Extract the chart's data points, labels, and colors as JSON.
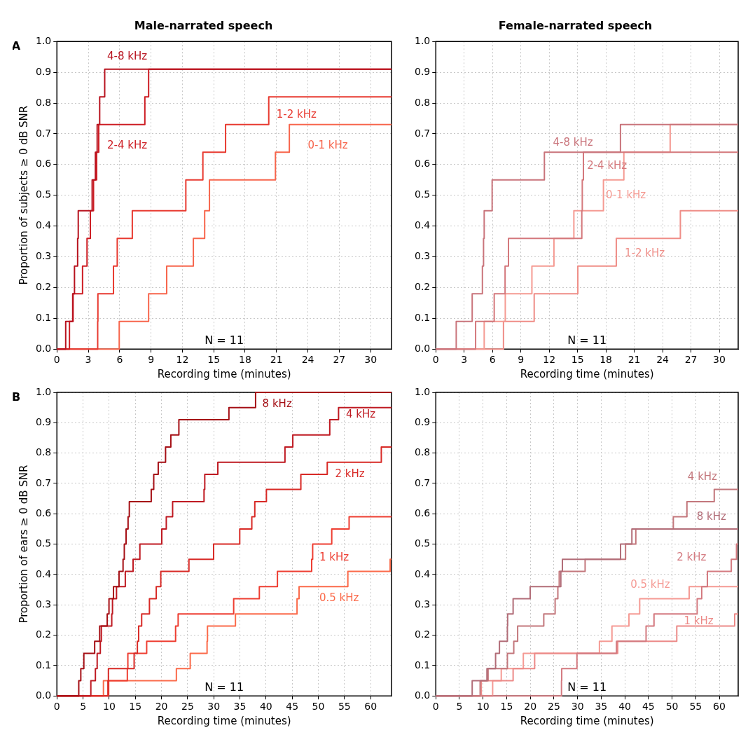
{
  "chart_data": [
    {
      "type": "step",
      "title": "Male-narrated speech",
      "xlabel": "Recording time (minutes)",
      "ylabel": "Proportion of subjects ≥ 0 dB SNR",
      "annotations": [
        "A",
        "N = 11"
      ],
      "grid": true,
      "xlim": [
        0,
        32
      ],
      "xticks": [
        0,
        3,
        6,
        9,
        12,
        15,
        18,
        21,
        24,
        27,
        30
      ],
      "ylim": [
        0,
        1
      ],
      "yticks": [
        {
          "value": 0,
          "label": "0.0"
        },
        {
          "value": 0.1,
          "label": "0.1"
        },
        {
          "value": 0.2,
          "label": "0.2"
        },
        {
          "value": 0.3,
          "label": "0.3"
        },
        {
          "value": 0.4,
          "label": "0.4"
        },
        {
          "value": 0.5,
          "label": "0.5"
        },
        {
          "value": 0.6,
          "label": "0.6"
        },
        {
          "value": 0.7,
          "label": "0.7"
        },
        {
          "value": 0.8,
          "label": "0.8"
        },
        {
          "value": 0.9,
          "label": "0.9"
        },
        {
          "value": 1,
          "label": "1.0"
        }
      ],
      "series": [
        {
          "name": "4-8 kHz",
          "color": "#b8131f",
          "x": [
            0,
            0.84,
            1.51,
            1.68,
            1.98,
            2.04,
            3.37,
            3.68,
            3.85,
            4.09,
            4.57,
            32
          ],
          "values": [
            0,
            0.09,
            0.18,
            0.27,
            0.36,
            0.45,
            0.55,
            0.64,
            0.73,
            0.82,
            0.91,
            0.91
          ]
        },
        {
          "name": "2-4 kHz",
          "color": "#cd1d24",
          "x": [
            0,
            1.2,
            1.55,
            2.45,
            2.88,
            3.2,
            3.5,
            3.8,
            4.0,
            8.41,
            8.77,
            32
          ],
          "values": [
            0,
            0.09,
            0.18,
            0.27,
            0.36,
            0.45,
            0.55,
            0.64,
            0.73,
            0.82,
            0.91,
            0.91
          ]
        },
        {
          "name": "1-2 kHz",
          "color": "#e83a30",
          "x": [
            0,
            3.9,
            3.92,
            5.41,
            5.77,
            7.21,
            12.33,
            13.96,
            16.13,
            20.26,
            32
          ],
          "values": [
            0,
            0.09,
            0.18,
            0.27,
            0.36,
            0.45,
            0.55,
            0.64,
            0.73,
            0.82,
            0.82
          ]
        },
        {
          "name": "0-1 kHz",
          "color": "#f7654c",
          "x": [
            0,
            5.96,
            8.77,
            10.5,
            13.05,
            14.13,
            14.59,
            20.9,
            22.23,
            32
          ],
          "values": [
            0,
            0.09,
            0.18,
            0.27,
            0.36,
            0.45,
            0.55,
            0.64,
            0.73,
            0.73
          ]
        }
      ]
    },
    {
      "type": "step",
      "title": "Female-narrated speech",
      "xlabel": "Recording time (minutes)",
      "annotations": [
        "N = 11"
      ],
      "grid": true,
      "xlim": [
        0,
        32
      ],
      "xticks": [
        0,
        3,
        6,
        9,
        12,
        15,
        18,
        21,
        24,
        27,
        30
      ],
      "ylim": [
        0,
        1
      ],
      "yticks": [
        {
          "value": 0,
          "label": "0.0"
        },
        {
          "value": 0.1,
          "label": "0.1"
        },
        {
          "value": 0.2,
          "label": "0.2"
        },
        {
          "value": 0.3,
          "label": "0.3"
        },
        {
          "value": 0.4,
          "label": "0.4"
        },
        {
          "value": 0.5,
          "label": "0.5"
        },
        {
          "value": 0.6,
          "label": "0.6"
        },
        {
          "value": 0.7,
          "label": "0.7"
        },
        {
          "value": 0.8,
          "label": "0.8"
        },
        {
          "value": 0.9,
          "label": "0.9"
        },
        {
          "value": 1,
          "label": "1.0"
        }
      ],
      "series": [
        {
          "name": "4-8 kHz",
          "color": "#c9747b",
          "x": [
            0,
            2.16,
            3.85,
            4.93,
            5.05,
            5.12,
            5.96,
            11.49,
            19.54,
            32
          ],
          "values": [
            0,
            0.09,
            0.18,
            0.27,
            0.36,
            0.45,
            0.55,
            0.64,
            0.73,
            0.73
          ]
        },
        {
          "name": "2-4 kHz",
          "color": "#d4787c",
          "x": [
            0,
            4.21,
            6.18,
            7.33,
            7.69,
            15.45,
            15.5,
            15.62,
            32
          ],
          "values": [
            0,
            0.09,
            0.18,
            0.27,
            0.36,
            0.45,
            0.55,
            0.64,
            0.64
          ]
        },
        {
          "name": "0-1 kHz",
          "color": "#f59a92",
          "x": [
            0,
            5.12,
            7.35,
            10.17,
            12.5,
            14.61,
            17.74,
            19.9,
            24.8,
            32
          ],
          "values": [
            0,
            0.09,
            0.18,
            0.27,
            0.36,
            0.45,
            0.55,
            0.64,
            0.73,
            0.73
          ]
        },
        {
          "name": "1-2 kHz",
          "color": "#ef8d87",
          "x": [
            0,
            7.16,
            10.41,
            15.03,
            19.1,
            25.88,
            32
          ],
          "values": [
            0,
            0.09,
            0.18,
            0.27,
            0.36,
            0.45,
            0.45
          ]
        }
      ]
    },
    {
      "type": "step",
      "xlabel": "Recording time (minutes)",
      "ylabel": "Proportion of ears ≥ 0 dB SNR",
      "annotations": [
        "B",
        "N = 11"
      ],
      "grid": true,
      "xlim": [
        0,
        64
      ],
      "xticks": [
        0,
        5,
        10,
        15,
        20,
        25,
        30,
        35,
        40,
        45,
        50,
        55,
        60
      ],
      "ylim": [
        0,
        1
      ],
      "yticks": [
        {
          "value": 0,
          "label": "0.0"
        },
        {
          "value": 0.1,
          "label": "0.1"
        },
        {
          "value": 0.2,
          "label": "0.2"
        },
        {
          "value": 0.3,
          "label": "0.3"
        },
        {
          "value": 0.4,
          "label": "0.4"
        },
        {
          "value": 0.5,
          "label": "0.5"
        },
        {
          "value": 0.6,
          "label": "0.6"
        },
        {
          "value": 0.7,
          "label": "0.7"
        },
        {
          "value": 0.8,
          "label": "0.8"
        },
        {
          "value": 0.9,
          "label": "0.9"
        },
        {
          "value": 1,
          "label": "1.0"
        }
      ],
      "series": [
        {
          "name": "8 kHz",
          "color": "#a50f15",
          "x": [
            0,
            4.18,
            4.57,
            5.15,
            7.22,
            8.18,
            9.62,
            9.96,
            10.82,
            11.88,
            12.65,
            12.89,
            13.23,
            13.61,
            13.85,
            18.04,
            18.52,
            19.38,
            20.78,
            21.79,
            23.33,
            32.9,
            38.0,
            64
          ],
          "values": [
            0,
            0.05,
            0.09,
            0.14,
            0.18,
            0.23,
            0.27,
            0.32,
            0.36,
            0.41,
            0.45,
            0.5,
            0.55,
            0.59,
            0.64,
            0.68,
            0.73,
            0.77,
            0.82,
            0.86,
            0.91,
            0.95,
            1.0,
            1.0
          ]
        },
        {
          "name": "4 kHz",
          "color": "#bf1a22",
          "x": [
            0,
            6.49,
            7.36,
            7.7,
            8.3,
            8.5,
            10.49,
            10.63,
            11.4,
            13.08,
            14.57,
            15.87,
            20.06,
            20.92,
            22.13,
            28.14,
            28.28,
            30.78,
            43.62,
            45.12,
            52.19,
            53.87,
            64
          ],
          "values": [
            0,
            0.05,
            0.09,
            0.14,
            0.18,
            0.23,
            0.27,
            0.32,
            0.36,
            0.41,
            0.45,
            0.5,
            0.55,
            0.59,
            0.64,
            0.68,
            0.73,
            0.77,
            0.82,
            0.86,
            0.91,
            0.95,
            0.95
          ]
        },
        {
          "name": "2 kHz",
          "color": "#d82a26",
          "x": [
            0,
            9.76,
            9.85,
            14.77,
            15.39,
            15.63,
            16.21,
            17.7,
            19.0,
            19.87,
            25.25,
            29.97,
            34.97,
            37.28,
            37.85,
            40.07,
            46.66,
            51.71,
            62.05,
            64
          ],
          "values": [
            0,
            0.05,
            0.09,
            0.14,
            0.18,
            0.23,
            0.27,
            0.32,
            0.36,
            0.41,
            0.45,
            0.5,
            0.55,
            0.59,
            0.64,
            0.68,
            0.73,
            0.77,
            0.82,
            0.82
          ]
        },
        {
          "name": "1 kHz",
          "color": "#ee3e32",
          "x": [
            0,
            9.9,
            13.47,
            13.57,
            17.17,
            22.7,
            23.19,
            33.81,
            38.72,
            42.18,
            48.73,
            48.92,
            52.57,
            55.89,
            64
          ],
          "values": [
            0,
            0.05,
            0.09,
            0.14,
            0.18,
            0.23,
            0.27,
            0.32,
            0.36,
            0.41,
            0.45,
            0.5,
            0.55,
            0.59,
            0.59
          ]
        },
        {
          "name": "0.5 kHz",
          "color": "#fb6a4a",
          "x": [
            0,
            8.9,
            22.85,
            25.5,
            28.72,
            28.8,
            34.15,
            45.93,
            46.32,
            55.65,
            63.74,
            64
          ],
          "values": [
            0,
            0.05,
            0.09,
            0.14,
            0.18,
            0.23,
            0.27,
            0.32,
            0.36,
            0.41,
            0.45,
            0.45
          ]
        }
      ]
    },
    {
      "type": "step",
      "xlabel": "Recording time (minutes)",
      "annotations": [
        "N = 11"
      ],
      "grid": true,
      "xlim": [
        0,
        64
      ],
      "xticks": [
        0,
        5,
        10,
        15,
        20,
        25,
        30,
        35,
        40,
        45,
        50,
        55,
        60
      ],
      "ylim": [
        0,
        1
      ],
      "yticks": [
        {
          "value": 0,
          "label": "0.0"
        },
        {
          "value": 0.1,
          "label": "0.1"
        },
        {
          "value": 0.2,
          "label": "0.2"
        },
        {
          "value": 0.3,
          "label": "0.3"
        },
        {
          "value": 0.4,
          "label": "0.4"
        },
        {
          "value": 0.5,
          "label": "0.5"
        },
        {
          "value": 0.6,
          "label": "0.6"
        },
        {
          "value": 0.7,
          "label": "0.7"
        },
        {
          "value": 0.8,
          "label": "0.8"
        },
        {
          "value": 0.9,
          "label": "0.9"
        },
        {
          "value": 1,
          "label": "1.0"
        }
      ],
      "series": [
        {
          "name": "8 kHz",
          "color": "#b26d78",
          "x": [
            0,
            7.7,
            10.82,
            12.65,
            13.47,
            15.15,
            15.2,
            16.36,
            19.97,
            26.46,
            26.79,
            39.1,
            41.5,
            64
          ],
          "values": [
            0,
            0.05,
            0.09,
            0.14,
            0.18,
            0.23,
            0.27,
            0.32,
            0.36,
            0.41,
            0.45,
            0.5,
            0.55,
            0.55
          ]
        },
        {
          "name": "4 kHz",
          "color": "#c3777c",
          "x": [
            0,
            9.38,
            11.06,
            15.15,
            16.5,
            17.32,
            22.85,
            25.25,
            25.83,
            26.12,
            31.6,
            40.16,
            42.33,
            50.27,
            53.15,
            58.93,
            64
          ],
          "values": [
            0,
            0.05,
            0.09,
            0.14,
            0.18,
            0.23,
            0.27,
            0.32,
            0.36,
            0.41,
            0.45,
            0.5,
            0.55,
            0.59,
            0.64,
            0.68,
            0.68
          ]
        },
        {
          "name": "2 kHz",
          "color": "#d47a80",
          "x": [
            0,
            26.6,
            26.65,
            29.87,
            38.24,
            44.5,
            46.18,
            55.32,
            56.28,
            57.48,
            62.54,
            63.64,
            64
          ],
          "values": [
            0,
            0.05,
            0.09,
            0.14,
            0.18,
            0.23,
            0.27,
            0.32,
            0.36,
            0.41,
            0.45,
            0.5,
            0.5
          ]
        },
        {
          "name": "1 kHz",
          "color": "#ec8a88",
          "x": [
            0,
            9.62,
            16.36,
            20.92,
            38.5,
            51.0,
            63.26,
            64
          ],
          "values": [
            0,
            0.05,
            0.09,
            0.14,
            0.18,
            0.23,
            0.27,
            0.27
          ]
        },
        {
          "name": "0.5 kHz",
          "color": "#f59a94",
          "x": [
            0,
            12.03,
            13.85,
            18.52,
            34.63,
            37.28,
            40.88,
            43.15,
            53.63,
            64
          ],
          "values": [
            0,
            0.05,
            0.09,
            0.14,
            0.18,
            0.23,
            0.27,
            0.32,
            0.36,
            0.36
          ]
        }
      ]
    }
  ]
}
